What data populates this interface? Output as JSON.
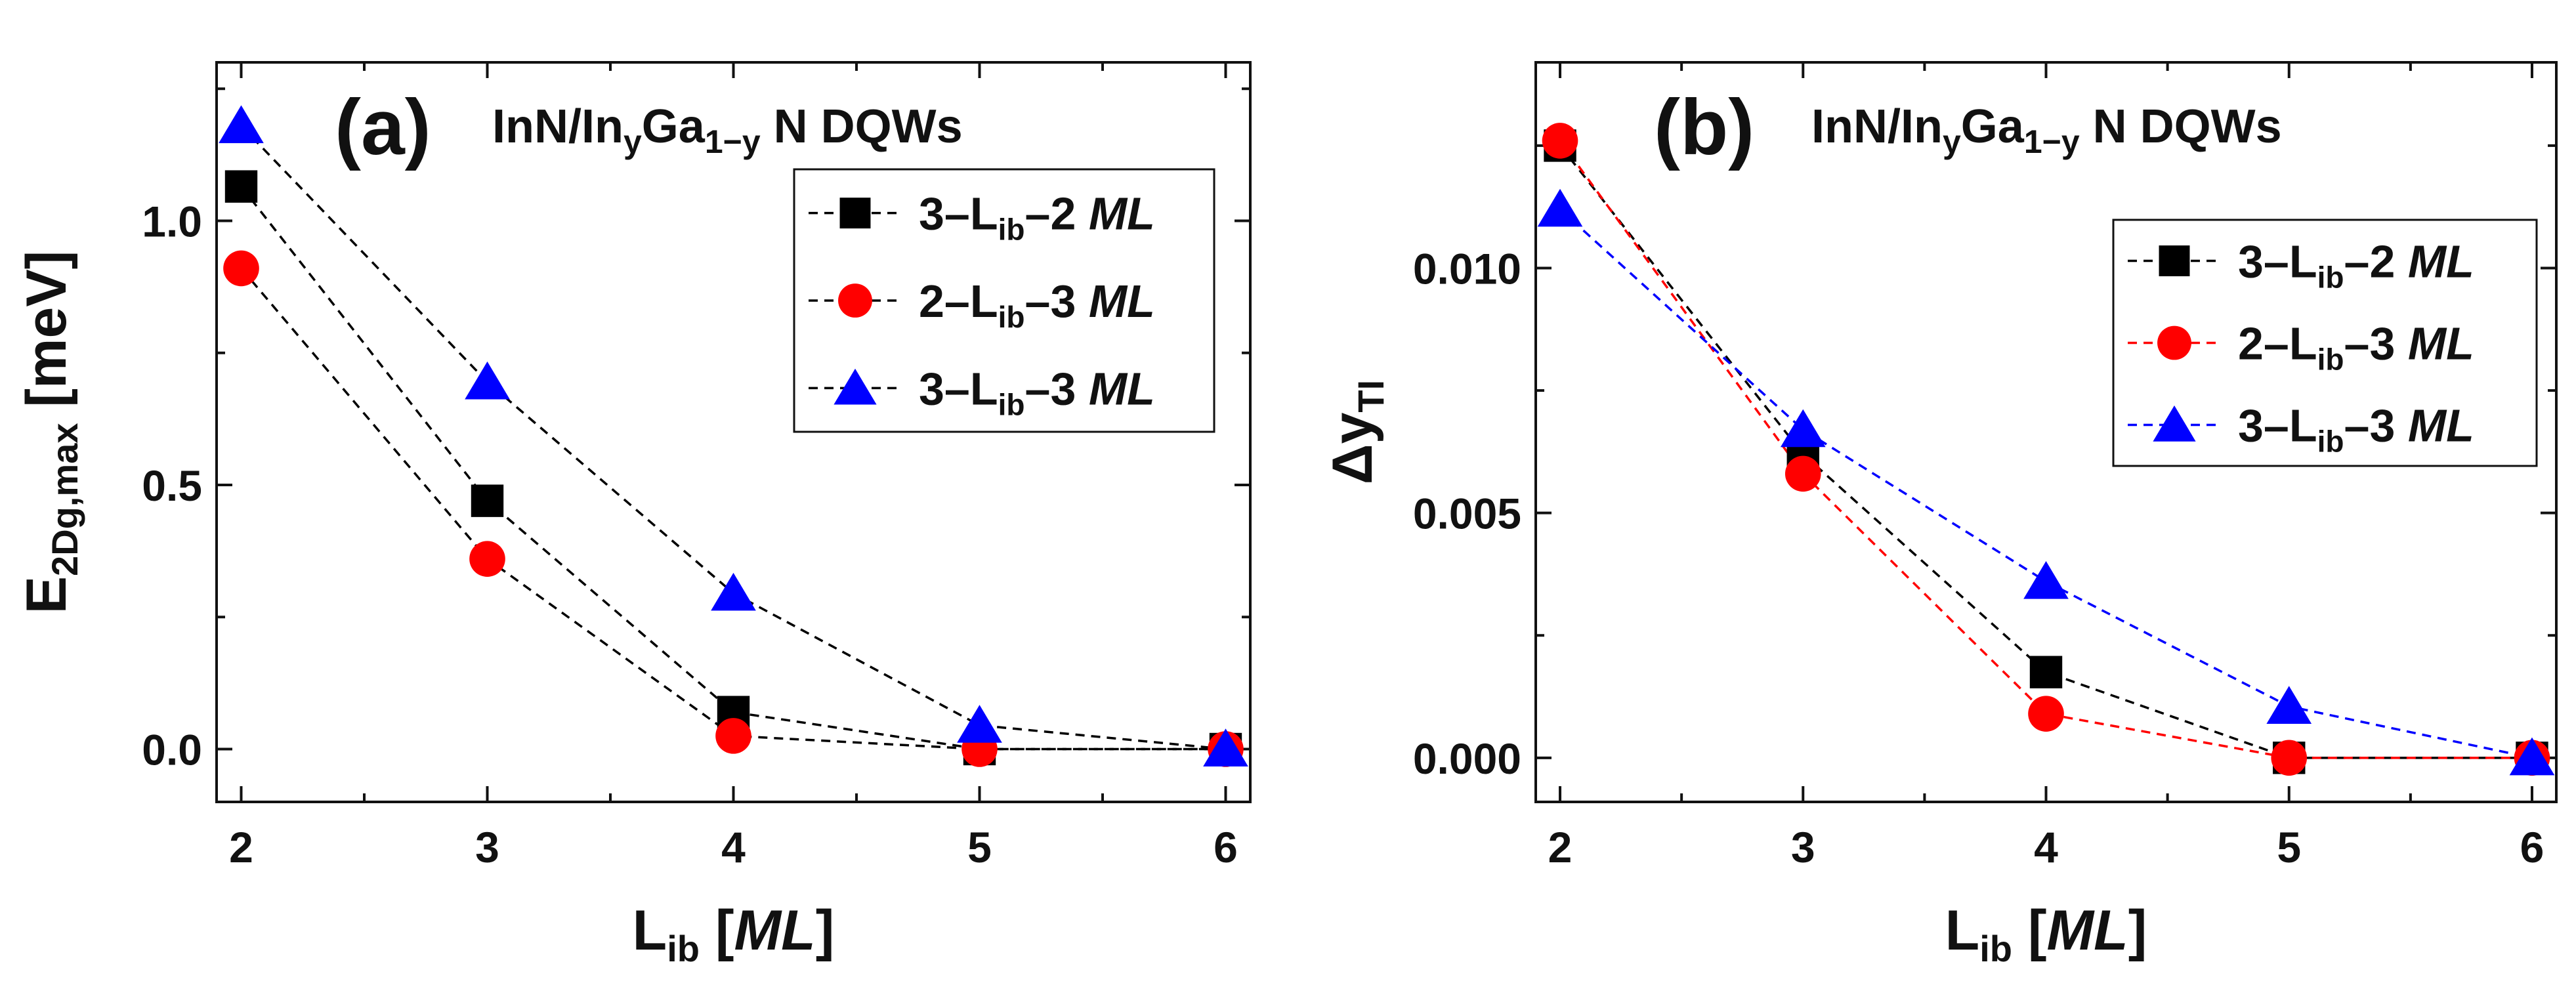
{
  "chart_data": [
    {
      "type": "line",
      "panel_label": "(a)",
      "title": {
        "main": "InN/In",
        "sub1": "y",
        "mid": "Ga",
        "sub2": "1−y",
        "tail": "N DQWs"
      },
      "xlabel": {
        "main": "L",
        "sub": "ib",
        "unit": "[ML]",
        "unit_open": "[",
        "unit_italic": "ML",
        "unit_close": "]"
      },
      "ylabel": {
        "main": "E",
        "sub": "2Dg,max",
        "unit": "[meV]"
      },
      "xlim": [
        1.9,
        6.1
      ],
      "ylim": [
        -0.1,
        1.3
      ],
      "x": [
        2,
        3,
        4,
        5,
        6
      ],
      "xticks": [
        "2",
        "3",
        "4",
        "5",
        "6"
      ],
      "yticks": [
        {
          "value": 0.0,
          "label": "0.0"
        },
        {
          "value": 0.5,
          "label": "0.5"
        },
        {
          "value": 1.0,
          "label": "1.0"
        }
      ],
      "legend_position": "top-right",
      "series": [
        {
          "name": "3–L––2 ML",
          "label": {
            "a": "3–L",
            "sub": "ib",
            "b": "–2 ",
            "ml": "ML"
          },
          "marker": "square",
          "color": "#000000",
          "line_color": "#000000",
          "values": [
            1.065,
            0.47,
            0.07,
            0.0,
            0.0
          ]
        },
        {
          "name": "2–L––3 ML",
          "label": {
            "a": "2–L",
            "sub": "ib",
            "b": "–3 ",
            "ml": "ML"
          },
          "marker": "circle",
          "color": "#ff0000",
          "line_color": "#000000",
          "values": [
            0.91,
            0.36,
            0.025,
            0.0,
            0.0
          ]
        },
        {
          "name": "3–L––3 ML",
          "label": {
            "a": "3–L",
            "sub": "ib",
            "b": "–3 ",
            "ml": "ML"
          },
          "marker": "triangle",
          "color": "#0000ff",
          "line_color": "#000000",
          "values": [
            1.18,
            0.695,
            0.295,
            0.045,
            0.0
          ]
        }
      ]
    },
    {
      "type": "line",
      "panel_label": "(b)",
      "title": {
        "main": "InN/In",
        "sub1": "y",
        "mid": "Ga",
        "sub2": "1−y",
        "tail": "N DQWs"
      },
      "xlabel": {
        "main": "L",
        "sub": "ib",
        "unit": "[ML]",
        "unit_open": "[",
        "unit_italic": "ML",
        "unit_close": "]"
      },
      "ylabel": {
        "main": "Δy",
        "sub": "TI"
      },
      "xlim": [
        1.9,
        6.1
      ],
      "ylim": [
        -0.0009,
        0.0142
      ],
      "x": [
        2,
        3,
        4,
        5,
        6
      ],
      "xticks": [
        "2",
        "3",
        "4",
        "5",
        "6"
      ],
      "yticks": [
        {
          "value": 0.0,
          "label": "0.000"
        },
        {
          "value": 0.005,
          "label": "0.005"
        },
        {
          "value": 0.01,
          "label": "0.010"
        }
      ],
      "legend_position": "top-right",
      "series": [
        {
          "name": "3–L––2 ML",
          "label": {
            "a": "3–L",
            "sub": "ib",
            "b": "–2 ",
            "ml": "ML"
          },
          "marker": "square",
          "color": "#000000",
          "line_color": "#000000",
          "values": [
            0.0125,
            0.0062,
            0.00175,
            0.0,
            0.0
          ]
        },
        {
          "name": "2–L––3 ML",
          "label": {
            "a": "2–L",
            "sub": "ib",
            "b": "–3 ",
            "ml": "ML"
          },
          "marker": "circle",
          "color": "#ff0000",
          "line_color": "#ff0000",
          "values": [
            0.0126,
            0.0058,
            0.0009,
            0.0,
            0.0
          ]
        },
        {
          "name": "3–L––3 ML",
          "label": {
            "a": "3–L",
            "sub": "ib",
            "b": "–3 ",
            "ml": "ML"
          },
          "marker": "triangle",
          "color": "#0000ff",
          "line_color": "#0000ff",
          "values": [
            0.0112,
            0.0067,
            0.0036,
            0.00105,
            0.0
          ]
        }
      ]
    }
  ]
}
